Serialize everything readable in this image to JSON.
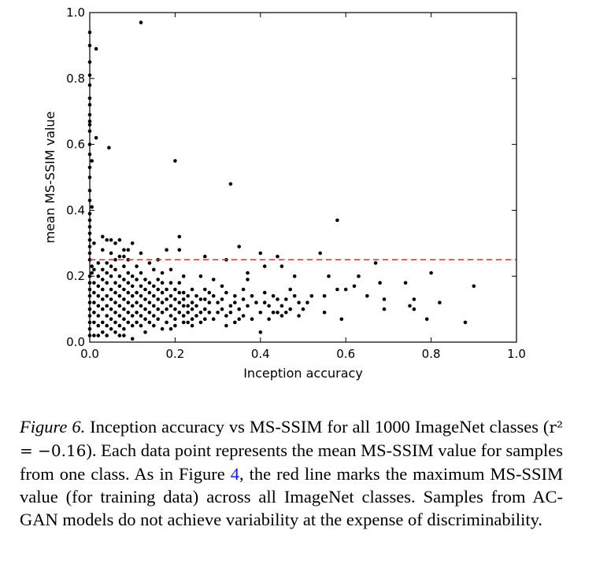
{
  "chart_data": {
    "type": "scatter",
    "xlabel": "Inception accuracy",
    "ylabel": "mean MS-SSIM value",
    "xlim": [
      0.0,
      1.0
    ],
    "ylim": [
      0.0,
      1.0
    ],
    "xticks": [
      "0.0",
      "0.2",
      "0.4",
      "0.6",
      "0.8",
      "1.0"
    ],
    "yticks": [
      "0.0",
      "0.2",
      "0.4",
      "0.6",
      "0.8",
      "1.0"
    ],
    "xtick_values": [
      0,
      0.2,
      0.4,
      0.6,
      0.8,
      1.0
    ],
    "ytick_values": [
      0,
      0.2,
      0.4,
      0.6,
      0.8,
      1.0
    ],
    "grid": false,
    "reference_line": {
      "orientation": "horizontal",
      "y": 0.25,
      "color": "#e8242b",
      "style": "dashed"
    },
    "series": [
      {
        "points": [
          [
            0.12,
            0.97
          ],
          [
            0.0,
            0.94
          ],
          [
            0.015,
            0.89
          ],
          [
            0.0,
            0.81
          ],
          [
            0.0,
            0.78
          ],
          [
            0.0,
            0.72
          ],
          [
            0.0,
            0.69
          ],
          [
            0.0,
            0.66
          ],
          [
            0.015,
            0.62
          ],
          [
            0.045,
            0.59
          ],
          [
            0.0,
            0.57
          ],
          [
            0.005,
            0.55
          ],
          [
            0.2,
            0.55
          ],
          [
            0.33,
            0.48
          ],
          [
            0.005,
            0.41
          ],
          [
            0.0,
            0.37
          ],
          [
            0.58,
            0.37
          ],
          [
            0.03,
            0.32
          ],
          [
            0.21,
            0.32
          ],
          [
            0.04,
            0.31
          ],
          [
            0.01,
            0.3
          ],
          [
            0.06,
            0.3
          ],
          [
            0.1,
            0.3
          ],
          [
            0.35,
            0.29
          ],
          [
            0.18,
            0.28
          ],
          [
            0.21,
            0.28
          ],
          [
            0.08,
            0.28
          ],
          [
            0.4,
            0.27
          ],
          [
            0.54,
            0.27
          ],
          [
            0.27,
            0.26
          ],
          [
            0.44,
            0.26
          ],
          [
            0.67,
            0.24
          ],
          [
            0.32,
            0.25
          ],
          [
            0.48,
            0.2
          ],
          [
            0.56,
            0.2
          ],
          [
            0.63,
            0.2
          ],
          [
            0.74,
            0.18
          ],
          [
            0.8,
            0.21
          ],
          [
            0.9,
            0.17
          ],
          [
            0.68,
            0.18
          ],
          [
            0.62,
            0.17
          ],
          [
            0.41,
            0.23
          ],
          [
            0.45,
            0.23
          ],
          [
            0.37,
            0.21
          ],
          [
            0.37,
            0.19
          ],
          [
            0.26,
            0.2
          ],
          [
            0.29,
            0.19
          ],
          [
            0.31,
            0.17
          ],
          [
            0.52,
            0.14
          ],
          [
            0.55,
            0.14
          ],
          [
            0.58,
            0.16
          ],
          [
            0.6,
            0.16
          ],
          [
            0.65,
            0.14
          ],
          [
            0.69,
            0.13
          ],
          [
            0.76,
            0.13
          ],
          [
            0.82,
            0.12
          ],
          [
            0.55,
            0.09
          ],
          [
            0.59,
            0.07
          ],
          [
            0.69,
            0.1
          ],
          [
            0.75,
            0.11
          ],
          [
            0.76,
            0.1
          ],
          [
            0.79,
            0.07
          ],
          [
            0.88,
            0.06
          ],
          [
            0.51,
            0.12
          ],
          [
            0.49,
            0.12
          ],
          [
            0.47,
            0.16
          ],
          [
            0.46,
            0.13
          ],
          [
            0.43,
            0.14
          ],
          [
            0.41,
            0.12
          ],
          [
            0.44,
            0.09
          ],
          [
            0.47,
            0.1
          ],
          [
            0.42,
            0.07
          ],
          [
            0.45,
            0.08
          ],
          [
            0.38,
            0.14
          ],
          [
            0.36,
            0.16
          ],
          [
            0.34,
            0.12
          ],
          [
            0.33,
            0.09
          ],
          [
            0.35,
            0.07
          ],
          [
            0.31,
            0.1
          ],
          [
            0.3,
            0.12
          ],
          [
            0.28,
            0.15
          ],
          [
            0.27,
            0.13
          ],
          [
            0.26,
            0.09
          ],
          [
            0.24,
            0.07
          ],
          [
            0.27,
            0.07
          ],
          [
            0.23,
            0.11
          ],
          [
            0.22,
            0.15
          ],
          [
            0.24,
            0.16
          ],
          [
            0.21,
            0.18
          ],
          [
            0.22,
            0.2
          ],
          [
            0.19,
            0.22
          ],
          [
            0.17,
            0.21
          ],
          [
            0.15,
            0.22
          ],
          [
            0.14,
            0.24
          ],
          [
            0.11,
            0.23
          ],
          [
            0.09,
            0.25
          ],
          [
            0.07,
            0.26
          ],
          [
            0.12,
            0.27
          ],
          [
            0.16,
            0.25
          ],
          [
            0.32,
            0.05
          ],
          [
            0.4,
            0.03
          ],
          [
            0.24,
            0.05
          ],
          [
            0.19,
            0.04
          ],
          [
            0.13,
            0.03
          ],
          [
            0.07,
            0.02
          ],
          [
            0.03,
            0.03
          ],
          [
            0.01,
            0.02
          ],
          [
            0.1,
            0.01
          ],
          [
            0.005,
            0.21
          ],
          [
            0.005,
            0.23
          ],
          [
            0.0,
            0.2
          ],
          [
            0.0,
            0.18
          ],
          [
            0.0,
            0.16
          ],
          [
            0.0,
            0.14
          ],
          [
            0.0,
            0.12
          ],
          [
            0.0,
            0.1
          ],
          [
            0.0,
            0.08
          ],
          [
            0.0,
            0.06
          ],
          [
            0.0,
            0.04
          ],
          [
            0.0,
            0.02
          ],
          [
            0.0,
            0.25
          ],
          [
            0.0,
            0.27
          ],
          [
            0.0,
            0.29
          ],
          [
            0.0,
            0.31
          ],
          [
            0.0,
            0.33
          ],
          [
            0.0,
            0.35
          ],
          [
            0.0,
            0.39
          ],
          [
            0.0,
            0.43
          ],
          [
            0.0,
            0.46
          ],
          [
            0.0,
            0.5
          ],
          [
            0.0,
            0.53
          ],
          [
            0.0,
            0.6
          ],
          [
            0.0,
            0.64
          ],
          [
            0.0,
            0.67
          ],
          [
            0.0,
            0.74
          ],
          [
            0.0,
            0.85
          ],
          [
            0.0,
            0.9
          ],
          [
            0.01,
            0.06
          ],
          [
            0.01,
            0.09
          ],
          [
            0.01,
            0.12
          ],
          [
            0.01,
            0.15
          ],
          [
            0.01,
            0.18
          ],
          [
            0.01,
            0.22
          ],
          [
            0.02,
            0.05
          ],
          [
            0.02,
            0.08
          ],
          [
            0.02,
            0.11
          ],
          [
            0.02,
            0.14
          ],
          [
            0.02,
            0.17
          ],
          [
            0.02,
            0.2
          ],
          [
            0.02,
            0.24
          ],
          [
            0.03,
            0.06
          ],
          [
            0.03,
            0.1
          ],
          [
            0.03,
            0.13
          ],
          [
            0.03,
            0.16
          ],
          [
            0.03,
            0.19
          ],
          [
            0.03,
            0.22
          ],
          [
            0.04,
            0.05
          ],
          [
            0.04,
            0.08
          ],
          [
            0.04,
            0.11
          ],
          [
            0.04,
            0.14
          ],
          [
            0.04,
            0.18
          ],
          [
            0.04,
            0.21
          ],
          [
            0.04,
            0.24
          ],
          [
            0.05,
            0.04
          ],
          [
            0.05,
            0.07
          ],
          [
            0.05,
            0.1
          ],
          [
            0.05,
            0.13
          ],
          [
            0.05,
            0.16
          ],
          [
            0.05,
            0.2
          ],
          [
            0.05,
            0.23
          ],
          [
            0.06,
            0.06
          ],
          [
            0.06,
            0.09
          ],
          [
            0.06,
            0.12
          ],
          [
            0.06,
            0.15
          ],
          [
            0.06,
            0.18
          ],
          [
            0.06,
            0.22
          ],
          [
            0.06,
            0.25
          ],
          [
            0.07,
            0.05
          ],
          [
            0.07,
            0.08
          ],
          [
            0.07,
            0.11
          ],
          [
            0.07,
            0.14
          ],
          [
            0.07,
            0.17
          ],
          [
            0.07,
            0.2
          ],
          [
            0.08,
            0.04
          ],
          [
            0.08,
            0.07
          ],
          [
            0.08,
            0.1
          ],
          [
            0.08,
            0.13
          ],
          [
            0.08,
            0.16
          ],
          [
            0.08,
            0.19
          ],
          [
            0.08,
            0.23
          ],
          [
            0.09,
            0.06
          ],
          [
            0.09,
            0.09
          ],
          [
            0.09,
            0.12
          ],
          [
            0.09,
            0.15
          ],
          [
            0.09,
            0.18
          ],
          [
            0.09,
            0.21
          ],
          [
            0.1,
            0.05
          ],
          [
            0.1,
            0.08
          ],
          [
            0.1,
            0.11
          ],
          [
            0.1,
            0.14
          ],
          [
            0.1,
            0.17
          ],
          [
            0.1,
            0.2
          ],
          [
            0.11,
            0.06
          ],
          [
            0.11,
            0.09
          ],
          [
            0.11,
            0.12
          ],
          [
            0.11,
            0.15
          ],
          [
            0.11,
            0.19
          ],
          [
            0.12,
            0.05
          ],
          [
            0.12,
            0.08
          ],
          [
            0.12,
            0.11
          ],
          [
            0.12,
            0.14
          ],
          [
            0.12,
            0.17
          ],
          [
            0.12,
            0.21
          ],
          [
            0.13,
            0.07
          ],
          [
            0.13,
            0.1
          ],
          [
            0.13,
            0.13
          ],
          [
            0.13,
            0.16
          ],
          [
            0.13,
            0.19
          ],
          [
            0.14,
            0.06
          ],
          [
            0.14,
            0.09
          ],
          [
            0.14,
            0.12
          ],
          [
            0.14,
            0.15
          ],
          [
            0.14,
            0.18
          ],
          [
            0.15,
            0.08
          ],
          [
            0.15,
            0.11
          ],
          [
            0.15,
            0.14
          ],
          [
            0.15,
            0.17
          ],
          [
            0.16,
            0.07
          ],
          [
            0.16,
            0.1
          ],
          [
            0.16,
            0.13
          ],
          [
            0.16,
            0.16
          ],
          [
            0.16,
            0.19
          ],
          [
            0.17,
            0.09
          ],
          [
            0.17,
            0.12
          ],
          [
            0.17,
            0.15
          ],
          [
            0.17,
            0.18
          ],
          [
            0.18,
            0.06
          ],
          [
            0.18,
            0.1
          ],
          [
            0.18,
            0.13
          ],
          [
            0.18,
            0.16
          ],
          [
            0.19,
            0.08
          ],
          [
            0.19,
            0.11
          ],
          [
            0.19,
            0.14
          ],
          [
            0.19,
            0.18
          ],
          [
            0.2,
            0.07
          ],
          [
            0.2,
            0.1
          ],
          [
            0.2,
            0.13
          ],
          [
            0.2,
            0.16
          ],
          [
            0.21,
            0.09
          ],
          [
            0.21,
            0.12
          ],
          [
            0.21,
            0.15
          ],
          [
            0.22,
            0.08
          ],
          [
            0.22,
            0.11
          ],
          [
            0.22,
            0.13
          ],
          [
            0.23,
            0.06
          ],
          [
            0.23,
            0.09
          ],
          [
            0.23,
            0.14
          ],
          [
            0.24,
            0.1
          ],
          [
            0.24,
            0.12
          ],
          [
            0.25,
            0.08
          ],
          [
            0.25,
            0.11
          ],
          [
            0.25,
            0.14
          ],
          [
            0.26,
            0.06
          ],
          [
            0.26,
            0.13
          ],
          [
            0.27,
            0.1
          ],
          [
            0.27,
            0.16
          ],
          [
            0.28,
            0.09
          ],
          [
            0.28,
            0.12
          ],
          [
            0.29,
            0.07
          ],
          [
            0.29,
            0.14
          ],
          [
            0.3,
            0.09
          ],
          [
            0.31,
            0.13
          ],
          [
            0.32,
            0.08
          ],
          [
            0.32,
            0.15
          ],
          [
            0.33,
            0.11
          ],
          [
            0.34,
            0.06
          ],
          [
            0.34,
            0.14
          ],
          [
            0.35,
            0.1
          ],
          [
            0.36,
            0.08
          ],
          [
            0.36,
            0.13
          ],
          [
            0.37,
            0.11
          ],
          [
            0.38,
            0.07
          ],
          [
            0.39,
            0.12
          ],
          [
            0.4,
            0.09
          ],
          [
            0.41,
            0.15
          ],
          [
            0.42,
            0.11
          ],
          [
            0.43,
            0.09
          ],
          [
            0.44,
            0.13
          ],
          [
            0.45,
            0.11
          ],
          [
            0.46,
            0.09
          ],
          [
            0.48,
            0.14
          ],
          [
            0.49,
            0.08
          ],
          [
            0.5,
            0.1
          ],
          [
            0.02,
            0.02
          ],
          [
            0.04,
            0.02
          ],
          [
            0.06,
            0.03
          ],
          [
            0.08,
            0.02
          ],
          [
            0.15,
            0.05
          ],
          [
            0.17,
            0.04
          ],
          [
            0.2,
            0.05
          ],
          [
            0.22,
            0.06
          ],
          [
            0.05,
            0.27
          ],
          [
            0.08,
            0.26
          ],
          [
            0.03,
            0.28
          ],
          [
            0.09,
            0.28
          ],
          [
            0.05,
            0.31
          ],
          [
            0.07,
            0.31
          ]
        ]
      }
    ]
  },
  "caption": {
    "label": "Figure 6.",
    "part1": "Inception accuracy vs MS-SSIM for all 1000 ImageNet classes (",
    "math": "r² = −0.16",
    "part2": "). Each data point represents the mean MS-SSIM value for samples from one class.  As in Figure ",
    "ref": "4",
    "part3": ", the red line marks the maximum MS-SSIM value (for training data) across all ImageNet classes. Samples from AC-GAN models do not achieve variability at the expense of discriminability."
  },
  "colors": {
    "point": "#000000",
    "axis": "#000000",
    "ref_link": "#1a1aee"
  }
}
